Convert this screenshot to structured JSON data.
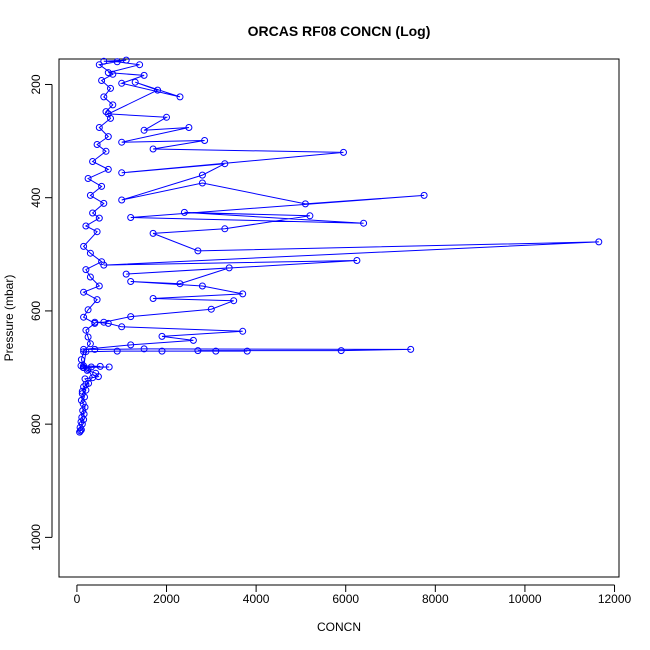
{
  "chart_data": {
    "type": "line",
    "title": "ORCAS RF08 CONCN (Log)",
    "xlabel": "CONCN",
    "ylabel": "Pressure (mbar)",
    "xlim": [
      -400,
      12100
    ],
    "ylim": [
      1070,
      155
    ],
    "y_reversed": true,
    "xticks": [
      0,
      2000,
      4000,
      6000,
      8000,
      10000,
      12000
    ],
    "yticks": [
      200,
      400,
      600,
      800,
      1000
    ],
    "grid": false,
    "legend": "none",
    "colors": {
      "series": "#0000ff",
      "axes": "#000000"
    },
    "marker": "open-circle",
    "series": [
      {
        "values": [
          [
            60,
            814
          ],
          [
            80,
            812
          ],
          [
            100,
            810
          ],
          [
            70,
            806
          ],
          [
            120,
            800
          ],
          [
            90,
            796
          ],
          [
            150,
            792
          ],
          [
            110,
            788
          ],
          [
            160,
            782
          ],
          [
            130,
            776
          ],
          [
            180,
            770
          ],
          [
            140,
            764
          ],
          [
            100,
            758
          ],
          [
            170,
            752
          ],
          [
            120,
            746
          ],
          [
            200,
            740
          ],
          [
            150,
            734
          ],
          [
            260,
            728
          ],
          [
            180,
            720
          ],
          [
            480,
            716
          ],
          [
            420,
            710
          ],
          [
            230,
            705
          ],
          [
            140,
            700
          ],
          [
            90,
            697
          ],
          [
            520,
            698
          ],
          [
            320,
            699
          ],
          [
            720,
            699
          ],
          [
            150,
            700
          ],
          [
            200,
            672
          ],
          [
            900,
            671
          ],
          [
            1900,
            671
          ],
          [
            3100,
            671
          ],
          [
            3800,
            671
          ],
          [
            2700,
            670
          ],
          [
            5900,
            670
          ],
          [
            7450,
            668
          ],
          [
            1500,
            667
          ],
          [
            400,
            668
          ],
          [
            150,
            668
          ],
          [
            1200,
            660
          ],
          [
            2600,
            652
          ],
          [
            1900,
            645
          ],
          [
            3700,
            636
          ],
          [
            1000,
            628
          ],
          [
            700,
            622
          ],
          [
            400,
            620
          ],
          [
            600,
            620
          ],
          [
            1200,
            610
          ],
          [
            3000,
            597
          ],
          [
            3500,
            582
          ],
          [
            1700,
            578
          ],
          [
            3700,
            570
          ],
          [
            2800,
            556
          ],
          [
            1200,
            548
          ],
          [
            2300,
            552
          ],
          [
            3400,
            524
          ],
          [
            1100,
            535
          ],
          [
            6250,
            511
          ],
          [
            600,
            519
          ],
          [
            11650,
            478
          ],
          [
            2700,
            494
          ],
          [
            1700,
            463
          ],
          [
            3300,
            455
          ],
          [
            5200,
            432
          ],
          [
            2400,
            426
          ],
          [
            6400,
            445
          ],
          [
            1200,
            435
          ],
          [
            7750,
            396
          ],
          [
            5100,
            411
          ],
          [
            2800,
            374
          ],
          [
            1000,
            404
          ],
          [
            2800,
            360
          ],
          [
            3300,
            340
          ],
          [
            1000,
            356
          ],
          [
            5950,
            320
          ],
          [
            1700,
            314
          ],
          [
            2850,
            299
          ],
          [
            1000,
            302
          ],
          [
            2500,
            276
          ],
          [
            1500,
            281
          ],
          [
            2000,
            258
          ],
          [
            700,
            252
          ],
          [
            1800,
            210
          ],
          [
            1300,
            196
          ],
          [
            2300,
            222
          ],
          [
            1000,
            198
          ],
          [
            1500,
            184
          ],
          [
            700,
            179
          ],
          [
            1400,
            165
          ],
          [
            900,
            160
          ],
          [
            600,
            159
          ],
          [
            1100,
            157
          ],
          [
            500,
            165
          ],
          [
            800,
            182
          ],
          [
            550,
            193
          ],
          [
            750,
            207
          ],
          [
            600,
            222
          ],
          [
            800,
            236
          ],
          [
            650,
            248
          ],
          [
            750,
            260
          ],
          [
            500,
            276
          ],
          [
            700,
            292
          ],
          [
            450,
            306
          ],
          [
            650,
            318
          ],
          [
            350,
            336
          ],
          [
            700,
            350
          ],
          [
            250,
            366
          ],
          [
            550,
            380
          ],
          [
            300,
            396
          ],
          [
            600,
            410
          ],
          [
            350,
            427
          ],
          [
            500,
            436
          ],
          [
            200,
            450
          ],
          [
            450,
            460
          ],
          [
            150,
            486
          ],
          [
            300,
            498
          ],
          [
            550,
            513
          ],
          [
            200,
            527
          ],
          [
            300,
            540
          ],
          [
            500,
            556
          ],
          [
            150,
            567
          ],
          [
            450,
            580
          ],
          [
            250,
            598
          ],
          [
            150,
            611
          ],
          [
            400,
            622
          ],
          [
            200,
            634
          ],
          [
            250,
            646
          ],
          [
            300,
            658
          ],
          [
            150,
            672
          ],
          [
            100,
            686
          ],
          [
            150,
            697
          ],
          [
            250,
            703
          ],
          [
            350,
            718
          ],
          [
            200,
            730
          ],
          [
            120,
            742
          ]
        ]
      }
    ]
  }
}
